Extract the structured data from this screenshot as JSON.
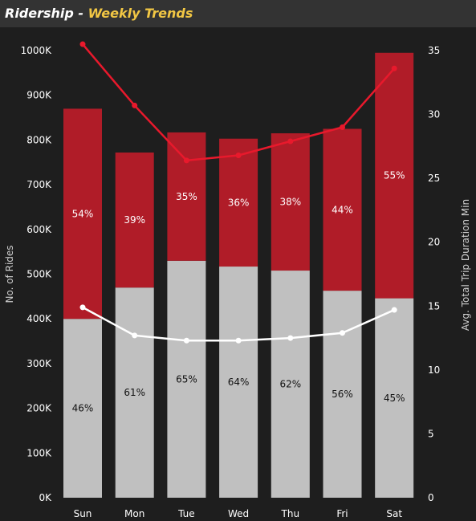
{
  "header": {
    "title_main": "Ridership - ",
    "title_sub": "Weekly Trends"
  },
  "chart_data": {
    "type": "bar",
    "stacked": true,
    "categories": [
      "Sun",
      "Mon",
      "Tue",
      "Wed",
      "Thu",
      "Fri",
      "Sat"
    ],
    "series": [
      {
        "values": [
          400000,
          470000,
          530000,
          517000,
          508000,
          463000,
          446000
        ],
        "labels": [
          "46%",
          "61%",
          "65%",
          "64%",
          "62%",
          "56%",
          "45%"
        ],
        "color": "#c0c0c0"
      },
      {
        "values": [
          470000,
          302000,
          287000,
          286000,
          307000,
          362000,
          549000
        ],
        "labels": [
          "54%",
          "39%",
          "35%",
          "36%",
          "38%",
          "44%",
          "55%"
        ],
        "color": "#b01c28"
      }
    ],
    "lines": [
      {
        "color": "#e8192c",
        "axis": "right",
        "values": [
          35.5,
          30.7,
          26.4,
          26.8,
          27.9,
          29.0,
          33.6
        ]
      },
      {
        "color": "#ffffff",
        "axis": "right",
        "values": [
          14.9,
          12.7,
          12.3,
          12.3,
          12.5,
          12.9,
          14.7
        ]
      }
    ],
    "ylabel": "No. of Rides",
    "y2label": "Avg. Total Trip Duration Min",
    "ylim": [
      0,
      1000000
    ],
    "y2lim": [
      0,
      35
    ],
    "yticks": [
      0,
      100000,
      200000,
      300000,
      400000,
      500000,
      600000,
      700000,
      800000,
      900000,
      1000000
    ],
    "yticklabels": [
      "0K",
      "100K",
      "200K",
      "300K",
      "400K",
      "500K",
      "600K",
      "700K",
      "800K",
      "900K",
      "1000K"
    ],
    "y2ticks": [
      0,
      5,
      10,
      15,
      20,
      25,
      30,
      35
    ],
    "y2ticklabels": [
      "0",
      "5",
      "10",
      "15",
      "20",
      "25",
      "30",
      "35"
    ],
    "grid": false,
    "legend": "none"
  }
}
